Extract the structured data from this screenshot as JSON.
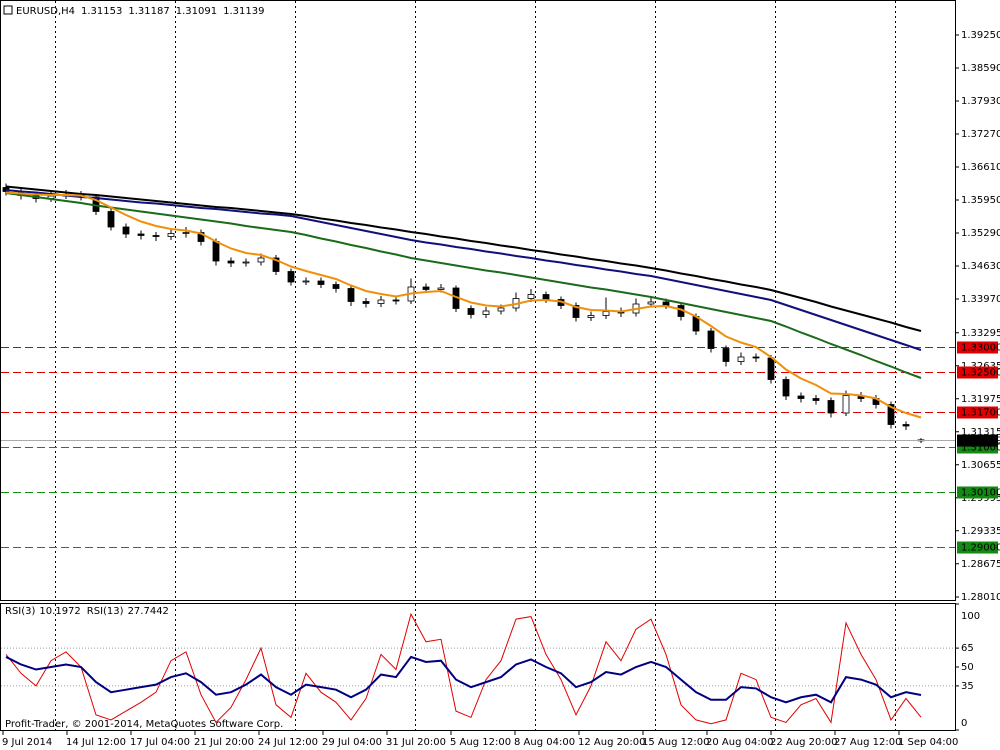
{
  "chart_data": {
    "type": "candlestick",
    "symbol": "EURUSD,H4",
    "x_labels": [
      "9 Jul 2014",
      "14 Jul 12:00",
      "17 Jul 04:00",
      "21 Jul 20:00",
      "24 Jul 12:00",
      "29 Jul 04:00",
      "31 Jul 20:00",
      "5 Aug 12:00",
      "8 Aug 04:00",
      "12 Aug 20:00",
      "15 Aug 12:00",
      "20 Aug 04:00",
      "22 Aug 20:00",
      "27 Aug 12:00",
      "1 Sep 04:00"
    ],
    "candles": {
      "open": [
        1.362,
        1.3612,
        1.3604,
        1.3598,
        1.3603,
        1.3606,
        1.3601,
        1.3572,
        1.3541,
        1.3527,
        1.3524,
        1.3522,
        1.3528,
        1.353,
        1.3512,
        1.3473,
        1.3469,
        1.3471,
        1.3479,
        1.3452,
        1.3431,
        1.3433,
        1.3426,
        1.3418,
        1.3392,
        1.3388,
        1.3395,
        1.3393,
        1.3421,
        1.3416,
        1.3419,
        1.3378,
        1.3366,
        1.3373,
        1.3379,
        1.3398,
        1.3406,
        1.3396,
        1.3384,
        1.336,
        1.3364,
        1.3372,
        1.3369,
        1.3387,
        1.3391,
        1.3384,
        1.3362,
        1.3333,
        1.3298,
        1.3272,
        1.3281,
        1.3279,
        1.3236,
        1.3203,
        1.3198,
        1.3194,
        1.3169,
        1.3204,
        1.3198,
        1.3186,
        1.3146,
        1.31153
      ],
      "high": [
        1.3628,
        1.3619,
        1.3611,
        1.3612,
        1.3615,
        1.3613,
        1.3607,
        1.3578,
        1.3548,
        1.3534,
        1.3531,
        1.3537,
        1.3541,
        1.3536,
        1.3518,
        1.348,
        1.3478,
        1.3488,
        1.3485,
        1.3458,
        1.344,
        1.344,
        1.3432,
        1.3424,
        1.3399,
        1.3403,
        1.3402,
        1.3438,
        1.3428,
        1.3427,
        1.3424,
        1.3384,
        1.3381,
        1.3386,
        1.341,
        1.3417,
        1.3412,
        1.3402,
        1.339,
        1.3372,
        1.34,
        1.338,
        1.3398,
        1.34,
        1.3398,
        1.339,
        1.3368,
        1.3339,
        1.3304,
        1.329,
        1.3288,
        1.3285,
        1.3242,
        1.321,
        1.3205,
        1.32,
        1.3214,
        1.3211,
        1.3205,
        1.3192,
        1.3152,
        1.31187
      ],
      "low": [
        1.3604,
        1.3596,
        1.359,
        1.3591,
        1.3597,
        1.3594,
        1.3565,
        1.3534,
        1.3519,
        1.3516,
        1.3513,
        1.3515,
        1.352,
        1.3504,
        1.3464,
        1.3461,
        1.3462,
        1.3464,
        1.3445,
        1.3424,
        1.3425,
        1.3419,
        1.341,
        1.3383,
        1.338,
        1.3381,
        1.3386,
        1.3387,
        1.3409,
        1.341,
        1.3371,
        1.3358,
        1.3359,
        1.3366,
        1.3372,
        1.3391,
        1.3389,
        1.3377,
        1.3352,
        1.3353,
        1.3357,
        1.3361,
        1.3362,
        1.338,
        1.3377,
        1.3354,
        1.3325,
        1.329,
        1.3262,
        1.3265,
        1.3271,
        1.3228,
        1.3195,
        1.319,
        1.3186,
        1.316,
        1.3163,
        1.3191,
        1.3178,
        1.3138,
        1.3135,
        1.31091
      ],
      "close": [
        1.3612,
        1.3604,
        1.3598,
        1.3603,
        1.3606,
        1.3601,
        1.3572,
        1.3541,
        1.3527,
        1.3524,
        1.3522,
        1.3528,
        1.353,
        1.3512,
        1.3473,
        1.3469,
        1.3471,
        1.3479,
        1.3452,
        1.3431,
        1.3433,
        1.3426,
        1.3418,
        1.3392,
        1.3388,
        1.3395,
        1.3393,
        1.3421,
        1.3416,
        1.3419,
        1.3378,
        1.3366,
        1.3373,
        1.3379,
        1.3398,
        1.3406,
        1.3396,
        1.3384,
        1.336,
        1.3364,
        1.3372,
        1.3369,
        1.3387,
        1.3391,
        1.3384,
        1.3362,
        1.3333,
        1.3298,
        1.3272,
        1.3281,
        1.3279,
        1.3236,
        1.3203,
        1.3198,
        1.3194,
        1.3169,
        1.3204,
        1.3198,
        1.3186,
        1.3146,
        1.3143,
        1.31139
      ]
    },
    "moving_averages": [
      {
        "color": "#000000",
        "values": [
          1.3622,
          1.3619,
          1.3616,
          1.3613,
          1.361,
          1.3607,
          1.3605,
          1.3602,
          1.3599,
          1.3596,
          1.3593,
          1.359,
          1.3587,
          1.3584,
          1.3581,
          1.3579,
          1.3576,
          1.3573,
          1.357,
          1.3567,
          1.3563,
          1.3558,
          1.3554,
          1.3549,
          1.3545,
          1.354,
          1.3536,
          1.3531,
          1.3527,
          1.3522,
          1.3518,
          1.3513,
          1.3509,
          1.3504,
          1.35,
          1.3495,
          1.3491,
          1.3486,
          1.3482,
          1.3477,
          1.3473,
          1.3468,
          1.3464,
          1.3459,
          1.3454,
          1.3448,
          1.3443,
          1.3437,
          1.3432,
          1.3426,
          1.3421,
          1.3415,
          1.3407,
          1.3399,
          1.3391,
          1.3382,
          1.3374,
          1.3366,
          1.3358,
          1.335,
          1.3341,
          1.3333
        ]
      },
      {
        "color": "#10107a",
        "values": [
          1.3615,
          1.3612,
          1.361,
          1.3607,
          1.3604,
          1.3601,
          1.3599,
          1.3596,
          1.3593,
          1.359,
          1.3588,
          1.3585,
          1.3582,
          1.3579,
          1.3577,
          1.3574,
          1.3571,
          1.3568,
          1.3566,
          1.3563,
          1.3557,
          1.3551,
          1.3545,
          1.3539,
          1.3533,
          1.3527,
          1.3521,
          1.3515,
          1.351,
          1.3506,
          1.3501,
          1.3497,
          1.3492,
          1.3488,
          1.3483,
          1.3479,
          1.3474,
          1.347,
          1.3465,
          1.3461,
          1.3456,
          1.3452,
          1.3447,
          1.3443,
          1.3437,
          1.3431,
          1.3425,
          1.3419,
          1.3413,
          1.3407,
          1.3401,
          1.3395,
          1.3385,
          1.3375,
          1.3365,
          1.3355,
          1.3345,
          1.3335,
          1.3325,
          1.3315,
          1.3305,
          1.3295
        ]
      },
      {
        "color": "#1a6b1a",
        "values": [
          1.3609,
          1.3605,
          1.3601,
          1.3597,
          1.3593,
          1.3589,
          1.3584,
          1.358,
          1.3576,
          1.3572,
          1.3568,
          1.3564,
          1.356,
          1.3556,
          1.3552,
          1.3548,
          1.3543,
          1.3539,
          1.3535,
          1.3531,
          1.3525,
          1.3518,
          1.3512,
          1.3505,
          1.3499,
          1.3492,
          1.3486,
          1.3479,
          1.3474,
          1.3469,
          1.3464,
          1.3459,
          1.3454,
          1.345,
          1.3445,
          1.344,
          1.3435,
          1.343,
          1.3425,
          1.342,
          1.3416,
          1.3411,
          1.3406,
          1.3401,
          1.3395,
          1.3389,
          1.3383,
          1.3377,
          1.3371,
          1.3365,
          1.3359,
          1.3353,
          1.3342,
          1.333,
          1.3319,
          1.3307,
          1.3296,
          1.3285,
          1.3273,
          1.3262,
          1.325,
          1.3239
        ]
      },
      {
        "color": "#f0900a",
        "values": [
          1.361,
          1.3608,
          1.3606,
          1.3605,
          1.3605,
          1.3604,
          1.3595,
          1.358,
          1.3565,
          1.3552,
          1.3543,
          1.3537,
          1.3534,
          1.3528,
          1.3512,
          1.3498,
          1.3489,
          1.3485,
          1.3475,
          1.3462,
          1.3453,
          1.3445,
          1.3437,
          1.3424,
          1.3413,
          1.3407,
          1.3402,
          1.3408,
          1.3411,
          1.3413,
          1.3401,
          1.339,
          1.3384,
          1.3382,
          1.3387,
          1.3394,
          1.3395,
          1.3392,
          1.3381,
          1.3375,
          1.3374,
          1.3372,
          1.3377,
          1.3382,
          1.3383,
          1.3376,
          1.3362,
          1.3343,
          1.3322,
          1.331,
          1.3301,
          1.3281,
          1.3256,
          1.3238,
          1.3225,
          1.3208,
          1.3207,
          1.3204,
          1.3198,
          1.3181,
          1.3169,
          1.316
        ]
      }
    ],
    "ylim": [
      1.2795,
      1.3995
    ],
    "yticks": [
      {
        "value": 1.3925,
        "label": "1.39250"
      },
      {
        "value": 1.3859,
        "label": "1.38590"
      },
      {
        "value": 1.3793,
        "label": "1.37930"
      },
      {
        "value": 1.3727,
        "label": "1.37270"
      },
      {
        "value": 1.3661,
        "label": "1.36610"
      },
      {
        "value": 1.3595,
        "label": "1.35950"
      },
      {
        "value": 1.3529,
        "label": "1.35290"
      },
      {
        "value": 1.3463,
        "label": "1.34630"
      },
      {
        "value": 1.3397,
        "label": "1.33970"
      },
      {
        "value": 1.33295,
        "label": "1.33295"
      },
      {
        "value": 1.32635,
        "label": "1.32635"
      },
      {
        "value": 1.31975,
        "label": "1.31975"
      },
      {
        "value": 1.31315,
        "label": "1.31315"
      },
      {
        "value": 1.30655,
        "label": "1.30655"
      },
      {
        "value": 1.29995,
        "label": "1.29995"
      },
      {
        "value": 1.29335,
        "label": "1.29335"
      },
      {
        "value": 1.28675,
        "label": "1.28675"
      },
      {
        "value": 1.2801,
        "label": "1.28010"
      }
    ],
    "price_levels": [
      {
        "value": 1.33,
        "label": "1.33000",
        "color": "#e00000"
      },
      {
        "value": 1.325,
        "label": "1.32500",
        "color": "#e00000"
      },
      {
        "value": 1.317,
        "label": "1.31700",
        "color": "#e00000"
      },
      {
        "value": 1.31,
        "label": "1.31000",
        "color": "#138a13"
      },
      {
        "value": 1.301,
        "label": "1.30100",
        "color": "#138a13"
      },
      {
        "value": 1.29,
        "label": "1.29000",
        "color": "#138a13"
      }
    ],
    "indicator": {
      "ylim": [
        0,
        100
      ],
      "yticks": [
        100,
        65,
        50,
        35,
        0
      ],
      "levels": [
        65,
        35
      ],
      "series": [
        {
          "name": "RSI(3)",
          "color": "#e00000",
          "values": [
            60,
            45,
            35,
            55,
            62,
            50,
            12,
            8,
            15,
            22,
            30,
            55,
            62,
            28,
            6,
            18,
            40,
            65,
            20,
            10,
            45,
            30,
            22,
            8,
            25,
            60,
            48,
            92,
            70,
            72,
            15,
            10,
            40,
            55,
            88,
            90,
            60,
            40,
            12,
            35,
            70,
            55,
            80,
            88,
            60,
            20,
            8,
            5,
            8,
            45,
            40,
            10,
            6,
            20,
            25,
            6,
            85,
            60,
            40,
            8,
            25,
            10.1972
          ]
        },
        {
          "name": "RSI(13)",
          "color": "#000080",
          "values": [
            58,
            52,
            48,
            50,
            52,
            50,
            38,
            30,
            32,
            34,
            36,
            42,
            45,
            38,
            28,
            30,
            36,
            44,
            34,
            28,
            36,
            34,
            32,
            26,
            32,
            44,
            42,
            58,
            54,
            55,
            40,
            34,
            38,
            42,
            52,
            56,
            50,
            45,
            34,
            38,
            46,
            44,
            50,
            54,
            50,
            40,
            30,
            24,
            24,
            34,
            33,
            26,
            22,
            26,
            28,
            22,
            42,
            40,
            36,
            26,
            30,
            27.7442
          ]
        }
      ]
    },
    "footer": "Profit-Trader, © 2001-2014, MetaQuotes Software Corp."
  }
}
